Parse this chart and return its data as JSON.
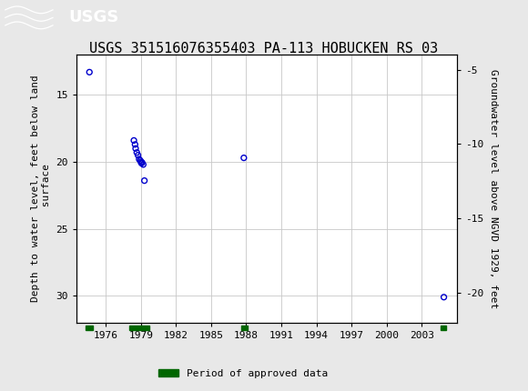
{
  "title": "USGS 351516076355403 PA-113 HOBUCKEN RS 03",
  "ylabel_left": "Depth to water level, feet below land\n surface",
  "ylabel_right": "Groundwater level above NGVD 1929, feet",
  "ylim_left": [
    32,
    12
  ],
  "ylim_right": [
    -22,
    -4
  ],
  "xlim": [
    1973.5,
    2006.0
  ],
  "xticks": [
    1976,
    1979,
    1982,
    1985,
    1988,
    1991,
    1994,
    1997,
    2000,
    2003
  ],
  "yticks_left": [
    15,
    20,
    25,
    30
  ],
  "yticks_right": [
    -5,
    -10,
    -15,
    -20
  ],
  "scatter_x": [
    1974.6,
    1978.4,
    1978.5,
    1978.55,
    1978.65,
    1978.75,
    1978.85,
    1978.95,
    1979.0,
    1979.05,
    1979.1,
    1979.2,
    1979.3,
    1987.8,
    2004.9
  ],
  "scatter_y": [
    13.3,
    18.4,
    18.7,
    19.0,
    19.3,
    19.5,
    19.8,
    19.9,
    20.0,
    20.1,
    20.05,
    20.2,
    21.4,
    19.7,
    30.1
  ],
  "scatter_color": "#0000cc",
  "scatter_size": 18,
  "bar_segments": [
    {
      "x_start": 1974.3,
      "x_end": 1974.9
    },
    {
      "x_start": 1978.0,
      "x_end": 1979.7
    },
    {
      "x_start": 1987.6,
      "x_end": 1988.1
    },
    {
      "x_start": 2004.6,
      "x_end": 2005.1
    }
  ],
  "bar_color": "#006600",
  "header_color": "#1a6b3c",
  "background_color": "#e8e8e8",
  "plot_bg": "#ffffff",
  "grid_color": "#c8c8c8",
  "title_fontsize": 11,
  "axis_label_fontsize": 8,
  "tick_fontsize": 8,
  "legend_label": "Period of approved data",
  "font_family": "monospace"
}
